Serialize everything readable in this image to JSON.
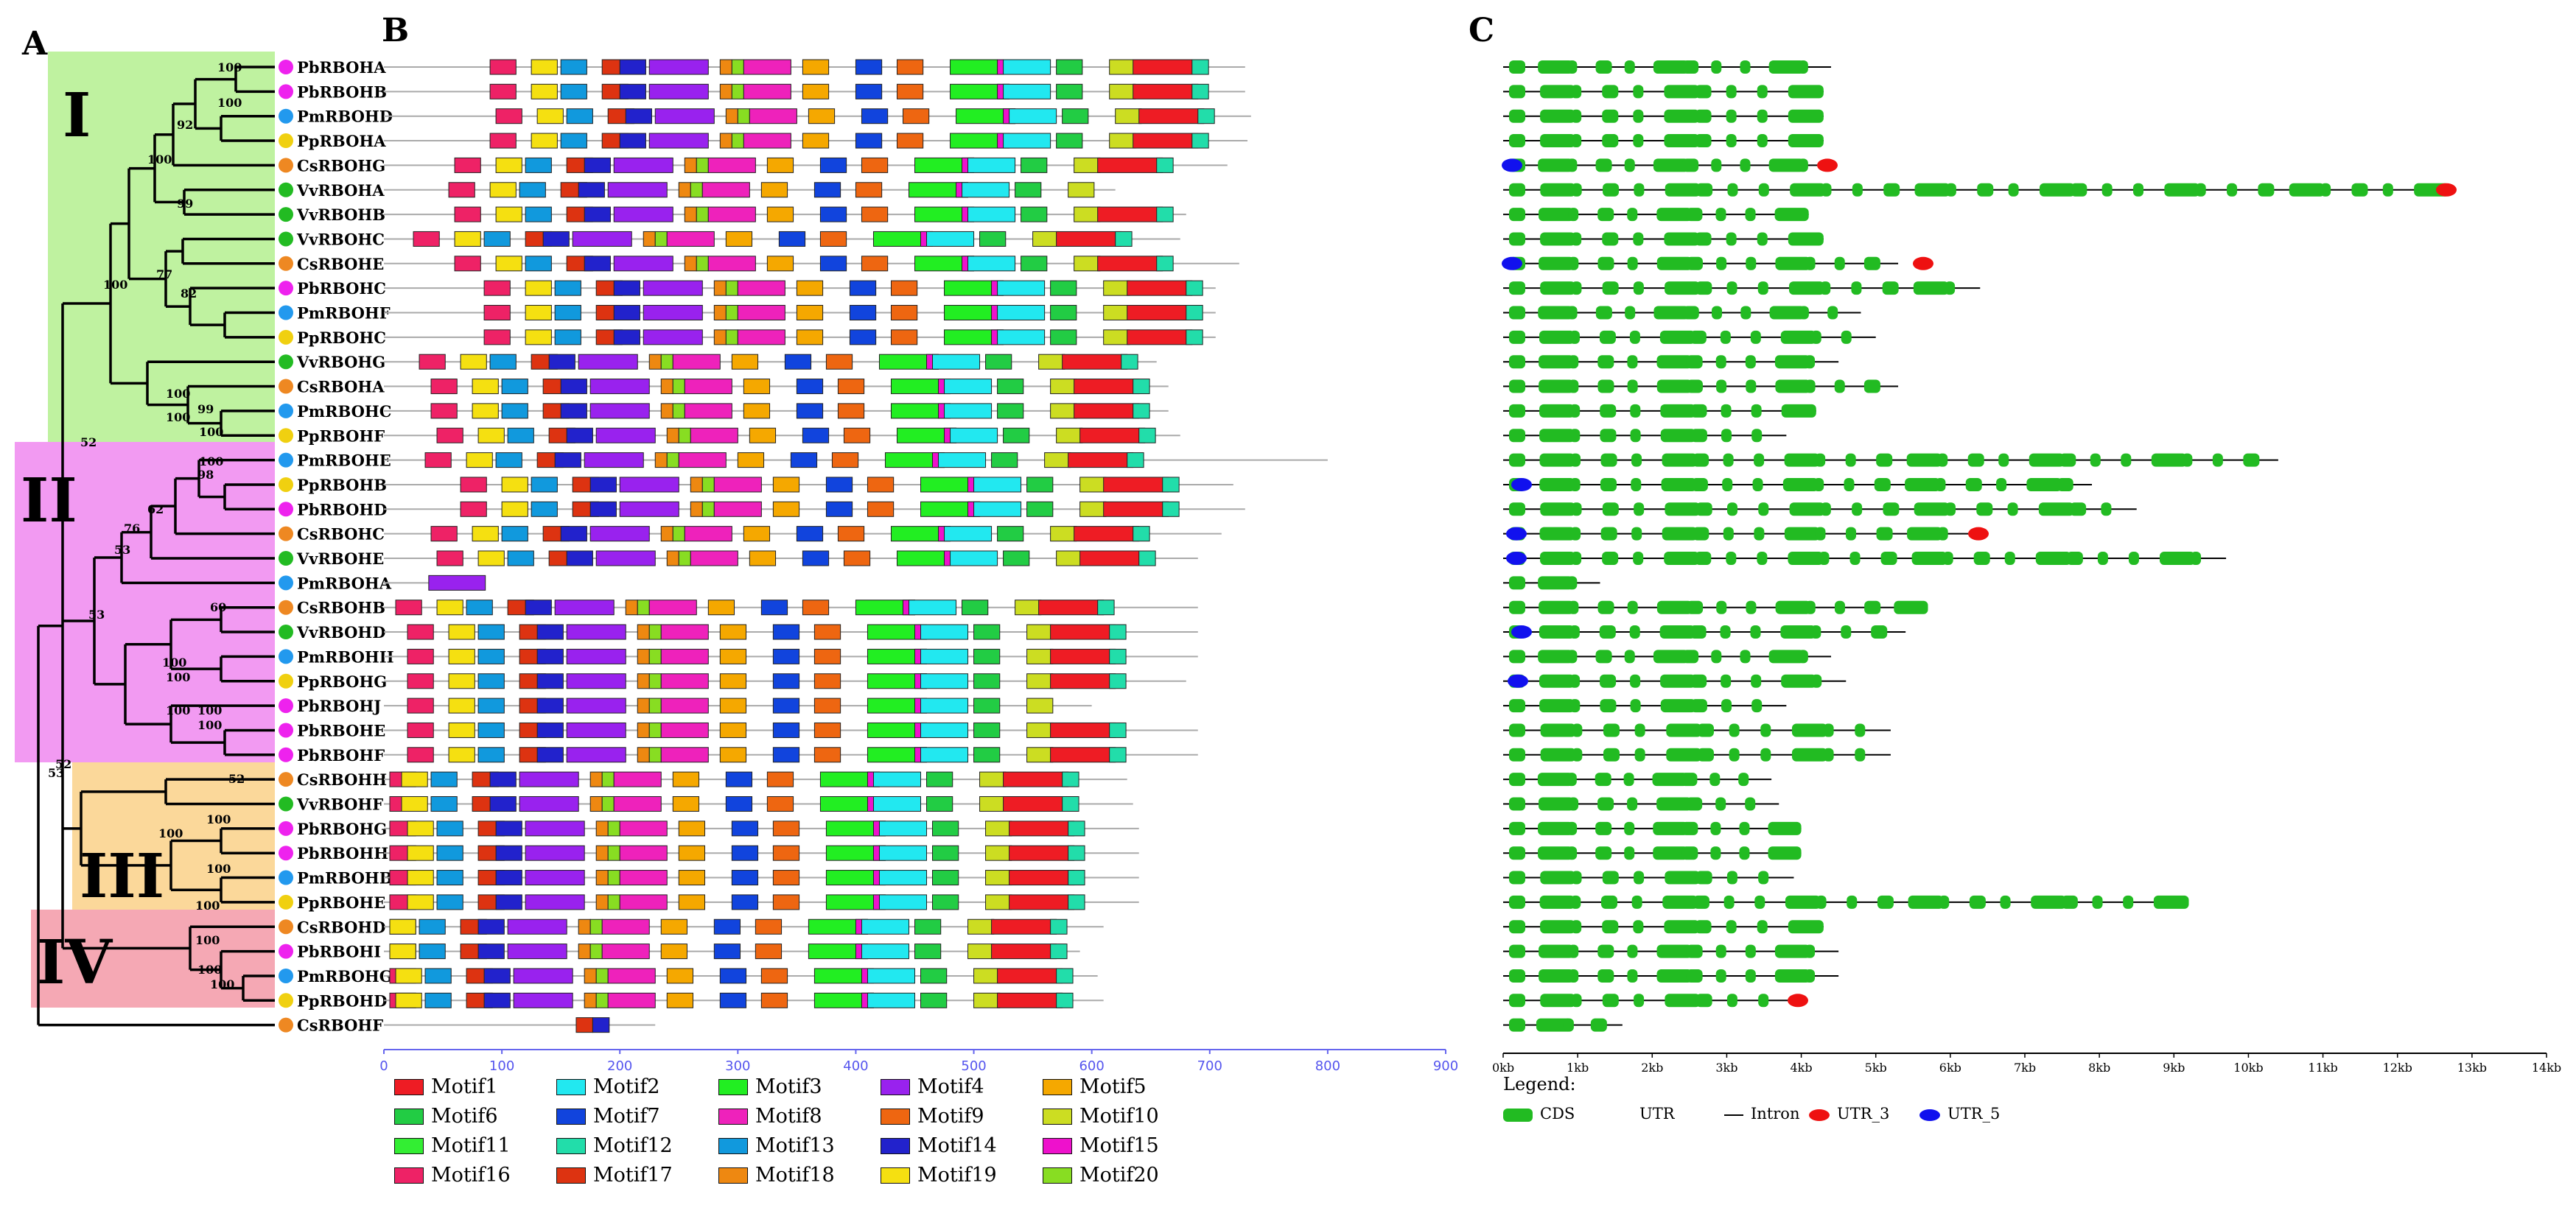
{
  "panels": {
    "a": "A",
    "b": "B",
    "c": "C"
  },
  "clades": [
    "I",
    "II",
    "III",
    "IV"
  ],
  "species_colors": {
    "Pb": "#ee22ee",
    "Pm": "#2299ee",
    "Pp": "#f0d010",
    "Vv": "#22bb22",
    "Cs": "#ee8822"
  },
  "genes": [
    {
      "name": "PbRBOHA",
      "sp": "Pb"
    },
    {
      "name": "PbRBOHB",
      "sp": "Pb"
    },
    {
      "name": "PmRBOHD",
      "sp": "Pm"
    },
    {
      "name": "PpRBOHA",
      "sp": "Pp"
    },
    {
      "name": "CsRBOHG",
      "sp": "Cs"
    },
    {
      "name": "VvRBOHA",
      "sp": "Vv"
    },
    {
      "name": "VvRBOHB",
      "sp": "Vv"
    },
    {
      "name": "VvRBOHC",
      "sp": "Vv"
    },
    {
      "name": "CsRBOHE",
      "sp": "Cs"
    },
    {
      "name": "PbRBOHC",
      "sp": "Pb"
    },
    {
      "name": "PmRBOHF",
      "sp": "Pm"
    },
    {
      "name": "PpRBOHC",
      "sp": "Pp"
    },
    {
      "name": "VvRBOHG",
      "sp": "Vv"
    },
    {
      "name": "CsRBOHA",
      "sp": "Cs"
    },
    {
      "name": "PmRBOHC",
      "sp": "Pm"
    },
    {
      "name": "PpRBOHF",
      "sp": "Pp"
    },
    {
      "name": "PmRBOHE",
      "sp": "Pm"
    },
    {
      "name": "PpRBOHB",
      "sp": "Pp"
    },
    {
      "name": "PbRBOHD",
      "sp": "Pb"
    },
    {
      "name": "CsRBOHC",
      "sp": "Cs"
    },
    {
      "name": "VvRBOHE",
      "sp": "Vv"
    },
    {
      "name": "PmRBOHA",
      "sp": "Pm"
    },
    {
      "name": "CsRBOHB",
      "sp": "Cs"
    },
    {
      "name": "VvRBOHD",
      "sp": "Vv"
    },
    {
      "name": "PmRBOHH",
      "sp": "Pm"
    },
    {
      "name": "PpRBOHG",
      "sp": "Pp"
    },
    {
      "name": "PbRBOHJ",
      "sp": "Pb"
    },
    {
      "name": "PbRBOHE",
      "sp": "Pb"
    },
    {
      "name": "PbRBOHF",
      "sp": "Pb"
    },
    {
      "name": "CsRBOHH",
      "sp": "Cs"
    },
    {
      "name": "VvRBOHF",
      "sp": "Vv"
    },
    {
      "name": "PbRBOHG",
      "sp": "Pb"
    },
    {
      "name": "PbRBOHH",
      "sp": "Pb"
    },
    {
      "name": "PmRBOHB",
      "sp": "Pm"
    },
    {
      "name": "PpRBOHE",
      "sp": "Pp"
    },
    {
      "name": "CsRBOHD",
      "sp": "Cs"
    },
    {
      "name": "PbRBOHI",
      "sp": "Pb"
    },
    {
      "name": "PmRBOHG",
      "sp": "Pm"
    },
    {
      "name": "PpRBOHD",
      "sp": "Pp"
    },
    {
      "name": "CsRBOHF",
      "sp": "Cs"
    }
  ],
  "bootstrap_values": [
    "100",
    "100",
    "92",
    "100",
    "99",
    "77",
    "82",
    "100",
    "100",
    "100",
    "99",
    "100",
    "52",
    "100",
    "98",
    "62",
    "76",
    "53",
    "53",
    "60",
    "100",
    "100",
    "100",
    "100",
    "100",
    "52",
    "52",
    "100",
    "100",
    "100",
    "100",
    "100",
    "53",
    "100",
    "100"
  ],
  "motifs": [
    {
      "name": "Motif1",
      "color": "#ee1c24"
    },
    {
      "name": "Motif2",
      "color": "#22e8f0"
    },
    {
      "name": "Motif3",
      "color": "#22ee22"
    },
    {
      "name": "Motif4",
      "color": "#9922ee"
    },
    {
      "name": "Motif5",
      "color": "#f5a800"
    },
    {
      "name": "Motif6",
      "color": "#22cc44"
    },
    {
      "name": "Motif7",
      "color": "#1144dd"
    },
    {
      "name": "Motif8",
      "color": "#ee22bb"
    },
    {
      "name": "Motif9",
      "color": "#ee6611"
    },
    {
      "name": "Motif10",
      "color": "#ccdd22"
    },
    {
      "name": "Motif11",
      "color": "#33ee33"
    },
    {
      "name": "Motif12",
      "color": "#22ddaa"
    },
    {
      "name": "Motif13",
      "color": "#1199dd"
    },
    {
      "name": "Motif14",
      "color": "#2222cc"
    },
    {
      "name": "Motif15",
      "color": "#ee11cc"
    },
    {
      "name": "Motif16",
      "color": "#ee2266"
    },
    {
      "name": "Motif17",
      "color": "#dd3311"
    },
    {
      "name": "Motif18",
      "color": "#ee8811"
    },
    {
      "name": "Motif19",
      "color": "#f5e011"
    },
    {
      "name": "Motif20",
      "color": "#88dd22"
    }
  ],
  "motif_axis": {
    "min": 0,
    "max": 900,
    "ticks": [
      "0",
      "100",
      "200",
      "300",
      "400",
      "500",
      "600",
      "700",
      "800",
      "900"
    ]
  },
  "protein_lengths": [
    730,
    730,
    735,
    732,
    715,
    620,
    680,
    675,
    725,
    705,
    705,
    705,
    655,
    665,
    665,
    675,
    800,
    720,
    730,
    710,
    690,
    85,
    690,
    690,
    690,
    680,
    600,
    690,
    690,
    630,
    635,
    640,
    640,
    640,
    640,
    610,
    590,
    605,
    610,
    230
  ],
  "motif_layout_full": [
    {
      "m": 16,
      "s": 65
    },
    {
      "m": 19,
      "s": 100
    },
    {
      "m": 13,
      "s": 125
    },
    {
      "m": 17,
      "s": 160
    },
    {
      "m": 14,
      "s": 175
    },
    {
      "m": 4,
      "s": 200
    },
    {
      "m": 18,
      "s": 260
    },
    {
      "m": 20,
      "s": 270
    },
    {
      "m": 8,
      "s": 280
    },
    {
      "m": 5,
      "s": 330
    },
    {
      "m": 7,
      "s": 375
    },
    {
      "m": 9,
      "s": 410
    },
    {
      "m": 3,
      "s": 455
    },
    {
      "m": 15,
      "s": 495
    },
    {
      "m": 2,
      "s": 500
    },
    {
      "m": 6,
      "s": 545
    },
    {
      "m": 10,
      "s": 590
    },
    {
      "m": 1,
      "s": 610
    },
    {
      "m": 12,
      "s": 660
    }
  ],
  "gene_structure_axis": {
    "ticks": [
      "0kb",
      "1kb",
      "2kb",
      "3kb",
      "4kb",
      "5kb",
      "6kb",
      "7kb",
      "8kb",
      "9kb",
      "10kb",
      "11kb",
      "12kb",
      "13kb",
      "14kb"
    ],
    "max_kb": 14
  },
  "gene_lengths_kb": [
    4.4,
    4.3,
    4.3,
    4.3,
    4.4,
    12.7,
    4.1,
    4.3,
    5.3,
    6.4,
    4.8,
    5.0,
    4.5,
    5.3,
    4.2,
    3.8,
    10.4,
    7.9,
    8.5,
    6.3,
    9.7,
    1.3,
    5.7,
    5.4,
    4.4,
    4.6,
    3.8,
    5.2,
    5.2,
    3.6,
    3.7,
    4.0,
    4.0,
    3.9,
    9.2,
    4.3,
    4.5,
    4.5,
    3.9,
    1.6
  ],
  "gene_structure_legend": {
    "title": "Legend:",
    "items": [
      {
        "label": "CDS",
        "color": "#22bb22"
      },
      {
        "label": "UTR",
        "color": ""
      },
      {
        "label": "Intron",
        "color": "#000000"
      },
      {
        "label": "UTR_3",
        "color": "#ee1111"
      },
      {
        "label": "UTR_5",
        "color": "#1111ee"
      }
    ]
  },
  "clade_colors": {
    "I": "#bff2a0",
    "II": "#f29af2",
    "III": "#fbd89a",
    "IV": "#f5a8b4"
  }
}
